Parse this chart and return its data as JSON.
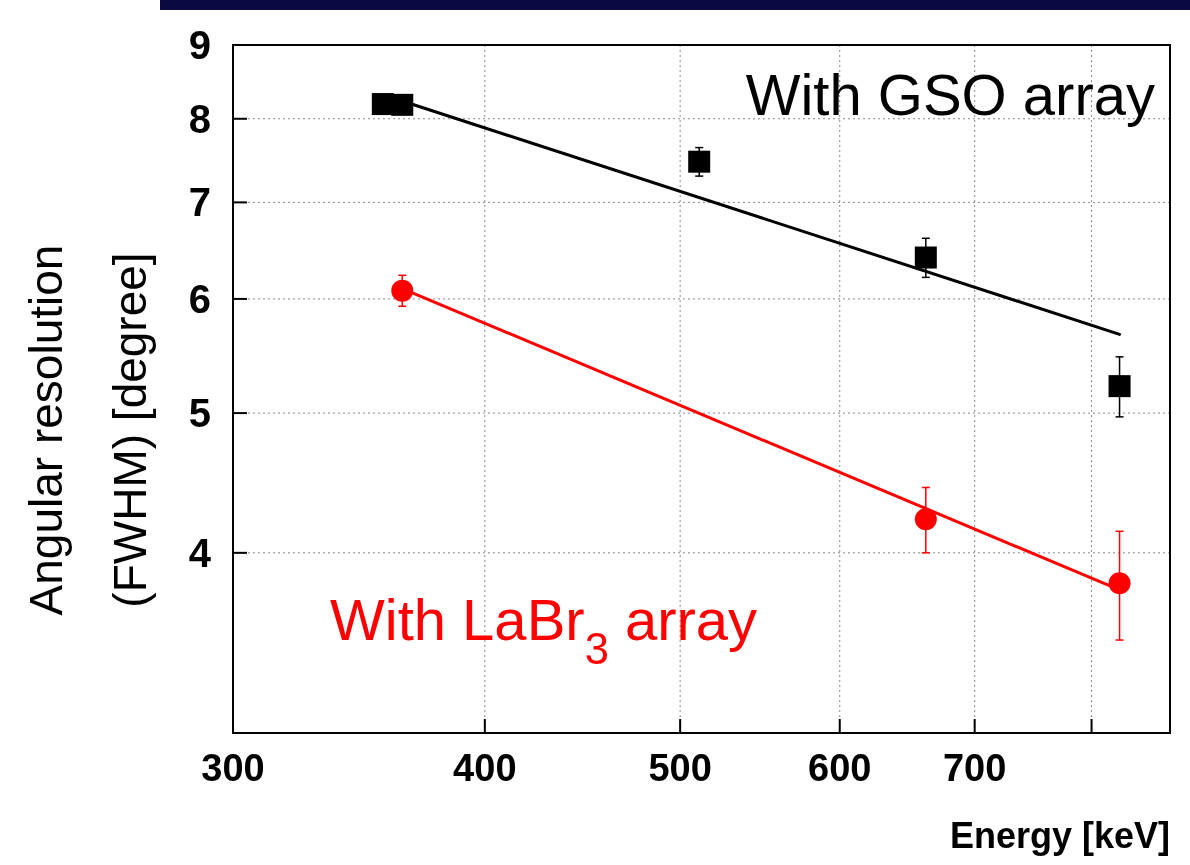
{
  "chart_data": {
    "type": "scatter",
    "xlabel": "Energy [keV]",
    "ylabel": "Angular resolution\n(FWHM) [degree]",
    "log": "xy",
    "grid": true,
    "xlim": [
      300,
      875
    ],
    "ylim": [
      3,
      9
    ],
    "xticks": [
      300,
      400,
      500,
      600,
      700,
      {
        "value": 800,
        "label": null
      }
    ],
    "yticks": [
      4,
      5,
      6,
      7,
      8,
      9
    ],
    "series": [
      {
        "name": "With GSO array",
        "color": "#000000",
        "marker": "square",
        "x": [
          356,
          364,
          511,
          662,
          826
        ],
        "values": [
          8.19,
          8.18,
          7.47,
          6.41,
          5.22
        ],
        "errors": [
          0.1,
          0.1,
          0.17,
          0.2,
          0.25
        ]
      },
      {
        "name": "With LaBr$_{3}$ array",
        "color": "#ff0000",
        "marker": "circle",
        "x": [
          364,
          662,
          826
        ],
        "values": [
          6.08,
          4.22,
          3.81
        ],
        "errors": [
          0.15,
          0.22,
          0.33
        ]
      },
      {
        "type": "line",
        "color": "#000000",
        "x": [
          364,
          826
        ],
        "values": [
          8.23,
          5.67
        ]
      },
      {
        "type": "line",
        "color": "#ff0000",
        "x": [
          364,
          826
        ],
        "values": [
          6.1,
          3.77
        ]
      }
    ]
  }
}
